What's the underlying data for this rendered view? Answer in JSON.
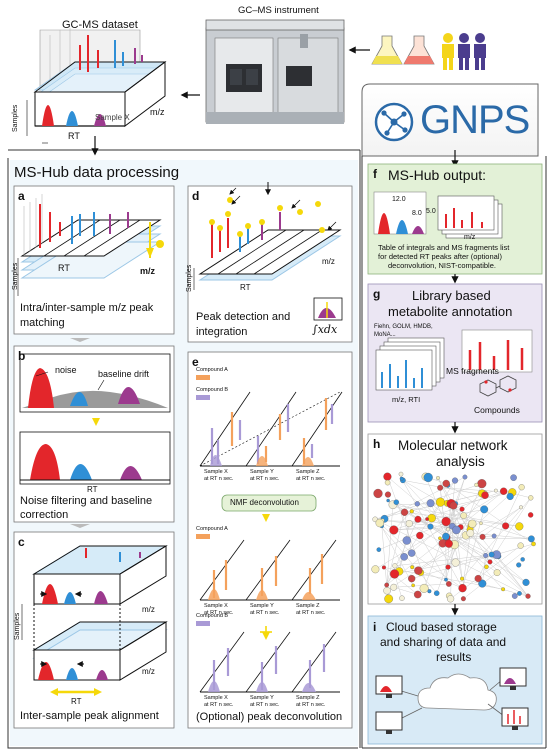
{
  "top": {
    "instrument_label": "GC–MS instrument",
    "dataset_label": "GC-MS dataset",
    "sample_label": "Sample X",
    "axis_mz": "m/z",
    "axis_rt": "RT",
    "axis_samples": "Samples"
  },
  "gnps_logo": "GNPS",
  "ms_hub": {
    "title": "MS-Hub data processing",
    "a": {
      "letter": "a",
      "caption_1": "Intra/inter-sample m/z peak",
      "caption_2": "matching"
    },
    "b": {
      "letter": "b",
      "noise": "noise",
      "baseline_drift": "baseline drift",
      "rt": "RT",
      "caption_1": "Noise filtering and baseline",
      "caption_2": "correction"
    },
    "c": {
      "letter": "c",
      "caption": "Inter-sample peak alignment"
    },
    "d": {
      "letter": "d",
      "caption_1": "Peak detection and",
      "caption_2": "integration",
      "integral": "∫xdx"
    },
    "e": {
      "letter": "e",
      "compound_a": "Compound A",
      "compound_b": "Compound B",
      "nmf": "NMF deconvolution",
      "samples": [
        {
          "name": "Sample X",
          "at": "at RT n sec."
        },
        {
          "name": "Sample Y",
          "at": "at RT n sec."
        },
        {
          "name": "Sample Z",
          "at": "at RT n sec."
        }
      ],
      "caption": "(Optional) peak deconvolution"
    }
  },
  "right": {
    "f": {
      "letter": "f",
      "title": "MS-Hub output:",
      "v1": "12.0",
      "v2": "8.0",
      "v3": "5.0",
      "mz": "m/z",
      "desc_1": "Table of integrals and MS fragments list",
      "desc_2": "for detected RT peaks after (optional)",
      "desc_3": "deconvolution, NIST-compatible."
    },
    "g": {
      "letter": "g",
      "title_1": "Library based",
      "title_2": "metabolite annotation",
      "libs_1": "Fiehn, GOLM, HMDB,",
      "libs_2": "MoNA...",
      "fragments": "MS fragments",
      "axis": "m/z, RTI",
      "compounds": "Compounds"
    },
    "h": {
      "letter": "h",
      "title_1": "Molecular network",
      "title_2": "analysis"
    },
    "i": {
      "letter": "i",
      "title_1": "Cloud based storage",
      "title_2": "and sharing of data and",
      "title_3": "results"
    }
  },
  "colors": {
    "red": "#e3262b",
    "blue": "#2f8fd6",
    "purple": "#9c3a8e",
    "yellow": "#f5d80a",
    "orange": "#f4a15c",
    "lavender": "#a99ad6",
    "green_panel": "#e3f1d7",
    "lilac_panel": "#ebe6f3",
    "blue_panel": "#d8eaf6",
    "msHub_bg": "#eef7fb"
  }
}
